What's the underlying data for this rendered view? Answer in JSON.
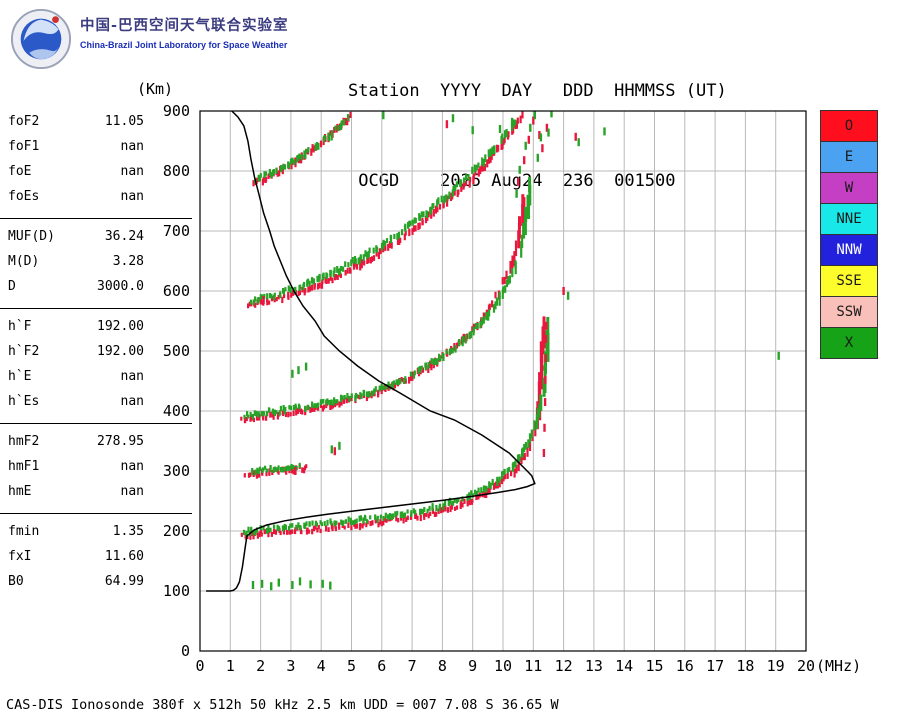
{
  "header": {
    "lab_title_cn": "中国-巴西空间天气联合实验室",
    "lab_title_en": "China-Brazil Joint Laboratory for Space Weather",
    "station_line1": "Station  YYYY  DAY   DDD  HHMMSS (UT)",
    "station_line2": " OCGD    2025 Aug24  236  001500"
  },
  "params": {
    "groups": [
      {
        "rows": [
          {
            "label": "foF2",
            "value": "11.05"
          },
          {
            "label": "foF1",
            "value": "nan"
          },
          {
            "label": "foE",
            "value": "nan"
          },
          {
            "label": "foEs",
            "value": "nan"
          }
        ]
      },
      {
        "rows": [
          {
            "label": "MUF(D)",
            "value": "36.24"
          },
          {
            "label": "M(D)",
            "value": "3.28"
          },
          {
            "label": "D",
            "value": "3000.0"
          }
        ]
      },
      {
        "rows": [
          {
            "label": "h`F",
            "value": "192.00"
          },
          {
            "label": "h`F2",
            "value": "192.00"
          },
          {
            "label": "h`E",
            "value": "nan"
          },
          {
            "label": "h`Es",
            "value": "nan"
          }
        ]
      },
      {
        "rows": [
          {
            "label": "hmF2",
            "value": "278.95"
          },
          {
            "label": "hmF1",
            "value": "nan"
          },
          {
            "label": "hmE",
            "value": "nan"
          }
        ]
      },
      {
        "rows": [
          {
            "label": "fmin",
            "value": "1.35"
          },
          {
            "label": "fxI",
            "value": "11.60"
          },
          {
            "label": "B0",
            "value": "64.99"
          }
        ]
      }
    ]
  },
  "chart_data": {
    "type": "scatter",
    "title": "Ionogram OCGD 2025 Aug24 236 001500 UT",
    "xlabel": "(MHz)",
    "ylabel": "(Km)",
    "xlim": [
      0,
      20
    ],
    "ylim": [
      0,
      900
    ],
    "x_ticks": [
      0,
      1,
      2,
      3,
      4,
      5,
      6,
      7,
      8,
      9,
      10,
      11,
      12,
      13,
      14,
      15,
      16,
      17,
      18,
      19,
      20
    ],
    "y_ticks": [
      0,
      100,
      200,
      300,
      400,
      500,
      600,
      700,
      800,
      900
    ],
    "grid": true,
    "legend": [
      {
        "label": "O",
        "color": "#ff0f1e",
        "text_color": "#1a1a1a"
      },
      {
        "label": "E",
        "color": "#4aa2f0",
        "text_color": "#1a1a1a"
      },
      {
        "label": "W",
        "color": "#c43fc4",
        "text_color": "#1a1a1a"
      },
      {
        "label": "NNE",
        "color": "#18e8e8",
        "text_color": "#1a1a1a"
      },
      {
        "label": "NNW",
        "color": "#2222dd",
        "text_color": "#ffffff"
      },
      {
        "label": "SSE",
        "color": "#fdfd2c",
        "text_color": "#1a1a1a"
      },
      {
        "label": "SSW",
        "color": "#f8c0b8",
        "text_color": "#1a1a1a"
      },
      {
        "label": "X",
        "color": "#17a317",
        "text_color": "#1a1a1a"
      }
    ],
    "series": [
      {
        "name": "o-mode-1st-hop",
        "type": "echo",
        "color": "#e8173d",
        "anchors": [
          [
            1.35,
            190
          ],
          [
            1.6,
            193
          ],
          [
            2.0,
            196
          ],
          [
            2.5,
            198
          ],
          [
            3.0,
            200
          ],
          [
            3.5,
            202
          ],
          [
            4.0,
            204
          ],
          [
            4.5,
            206
          ],
          [
            5.0,
            209
          ],
          [
            5.5,
            212
          ],
          [
            6.0,
            215
          ],
          [
            6.5,
            219
          ],
          [
            7.0,
            223
          ],
          [
            7.5,
            228
          ],
          [
            8.0,
            234
          ],
          [
            8.4,
            240
          ],
          [
            8.8,
            248
          ],
          [
            9.2,
            257
          ],
          [
            9.5,
            266
          ],
          [
            9.8,
            276
          ],
          [
            10.1,
            288
          ],
          [
            10.35,
            300
          ],
          [
            10.55,
            313
          ],
          [
            10.75,
            328
          ],
          [
            10.9,
            345
          ],
          [
            11.0,
            363
          ],
          [
            11.1,
            385
          ],
          [
            11.18,
            412
          ],
          [
            11.24,
            445
          ],
          [
            11.29,
            485
          ],
          [
            11.33,
            545
          ]
        ]
      },
      {
        "name": "x-mode-1st-hop",
        "type": "echo",
        "color": "#27a327",
        "anchors": [
          [
            1.45,
            198
          ],
          [
            2.0,
            203
          ],
          [
            3.0,
            208
          ],
          [
            4.0,
            212
          ],
          [
            5.0,
            217
          ],
          [
            6.0,
            223
          ],
          [
            7.0,
            231
          ],
          [
            8.0,
            243
          ],
          [
            8.8,
            257
          ],
          [
            9.4,
            272
          ],
          [
            9.9,
            289
          ],
          [
            10.3,
            308
          ],
          [
            10.65,
            330
          ],
          [
            10.9,
            355
          ],
          [
            11.1,
            382
          ],
          [
            11.25,
            415
          ],
          [
            11.38,
            455
          ],
          [
            11.47,
            505
          ],
          [
            11.52,
            550
          ]
        ]
      },
      {
        "name": "o-mode-2nd-hop",
        "type": "echo",
        "color": "#e8173d",
        "anchors": [
          [
            1.4,
            385
          ],
          [
            1.8,
            389
          ],
          [
            2.3,
            393
          ],
          [
            2.9,
            397
          ],
          [
            3.5,
            402
          ],
          [
            4.1,
            408
          ],
          [
            4.7,
            415
          ],
          [
            5.3,
            423
          ],
          [
            5.9,
            433
          ],
          [
            6.5,
            445
          ],
          [
            7.0,
            458
          ],
          [
            7.5,
            473
          ],
          [
            8.0,
            490
          ],
          [
            8.5,
            510
          ],
          [
            8.9,
            530
          ],
          [
            9.3,
            552
          ],
          [
            9.6,
            575
          ],
          [
            9.9,
            600
          ],
          [
            10.15,
            628
          ],
          [
            10.35,
            658
          ],
          [
            10.5,
            690
          ],
          [
            10.62,
            725
          ],
          [
            10.72,
            760
          ]
        ]
      },
      {
        "name": "x-mode-2nd-hop",
        "type": "echo",
        "color": "#27a327",
        "anchors": [
          [
            1.5,
            393
          ],
          [
            2.5,
            400
          ],
          [
            3.5,
            408
          ],
          [
            4.5,
            418
          ],
          [
            5.5,
            430
          ],
          [
            6.5,
            447
          ],
          [
            7.3,
            468
          ],
          [
            8.0,
            492
          ],
          [
            8.7,
            518
          ],
          [
            9.3,
            548
          ],
          [
            9.8,
            580
          ],
          [
            10.2,
            615
          ],
          [
            10.5,
            655
          ],
          [
            10.7,
            700
          ],
          [
            10.85,
            750
          ],
          [
            10.95,
            790
          ]
        ]
      },
      {
        "name": "o-mode-3rd-hop",
        "type": "echo",
        "color": "#e8173d",
        "anchors": [
          [
            1.6,
            575
          ],
          [
            2.0,
            580
          ],
          [
            2.5,
            586
          ],
          [
            3.0,
            594
          ],
          [
            3.5,
            603
          ],
          [
            4.0,
            613
          ],
          [
            4.5,
            624
          ],
          [
            5.0,
            637
          ],
          [
            5.5,
            651
          ],
          [
            6.0,
            667
          ],
          [
            6.5,
            684
          ],
          [
            7.0,
            702
          ],
          [
            7.5,
            722
          ],
          [
            8.0,
            743
          ],
          [
            8.5,
            765
          ],
          [
            9.0,
            788
          ],
          [
            9.4,
            810
          ],
          [
            9.8,
            834
          ],
          [
            10.15,
            858
          ],
          [
            10.45,
            880
          ],
          [
            10.7,
            896
          ]
        ]
      },
      {
        "name": "x-mode-3rd-hop",
        "type": "echo",
        "color": "#27a327",
        "anchors": [
          [
            1.7,
            583
          ],
          [
            2.5,
            594
          ],
          [
            3.5,
            612
          ],
          [
            4.5,
            634
          ],
          [
            5.5,
            661
          ],
          [
            6.5,
            694
          ],
          [
            7.5,
            732
          ],
          [
            8.5,
            775
          ],
          [
            9.4,
            820
          ],
          [
            10.1,
            862
          ],
          [
            10.55,
            890
          ]
        ]
      },
      {
        "name": "o-mode-4th-hop",
        "type": "echo",
        "color": "#e8173d",
        "anchors": [
          [
            1.75,
            778
          ],
          [
            2.1,
            786
          ],
          [
            2.5,
            796
          ],
          [
            2.9,
            808
          ],
          [
            3.3,
            821
          ],
          [
            3.7,
            836
          ],
          [
            4.1,
            852
          ],
          [
            4.5,
            869
          ],
          [
            4.85,
            886
          ],
          [
            5.05,
            896
          ]
        ]
      },
      {
        "name": "x-mode-4th-hop",
        "type": "echo",
        "color": "#27a327",
        "anchors": [
          [
            1.85,
            786
          ],
          [
            2.4,
            798
          ],
          [
            3.0,
            814
          ],
          [
            3.6,
            833
          ],
          [
            4.2,
            855
          ],
          [
            4.7,
            877
          ],
          [
            5.0,
            892
          ]
        ]
      },
      {
        "name": "o-mode-stray-300km",
        "type": "echo",
        "color": "#e8173d",
        "anchors": [
          [
            1.5,
            294
          ],
          [
            2.2,
            298
          ],
          [
            3.0,
            302
          ],
          [
            3.6,
            306
          ]
        ]
      },
      {
        "name": "x-mode-stray-300km",
        "type": "echo",
        "color": "#27a327",
        "anchors": [
          [
            1.7,
            299
          ],
          [
            2.6,
            305
          ],
          [
            3.4,
            310
          ]
        ]
      },
      {
        "name": "o-mode-scatter",
        "type": "points",
        "color": "#e8173d",
        "points": [
          [
            4.45,
            333
          ],
          [
            8.15,
            878
          ],
          [
            10.5,
            782
          ],
          [
            10.7,
            818
          ],
          [
            10.85,
            852
          ],
          [
            11.0,
            884
          ],
          [
            11.2,
            860
          ],
          [
            11.3,
            838
          ],
          [
            11.45,
            872
          ],
          [
            12.0,
            600
          ],
          [
            12.4,
            857
          ],
          [
            11.35,
            330
          ],
          [
            11.37,
            372
          ],
          [
            11.39,
            415
          ],
          [
            11.4,
            452
          ],
          [
            11.41,
            488
          ],
          [
            11.42,
            520
          ],
          [
            11.43,
            542
          ],
          [
            3.15,
            300
          ],
          [
            2.1,
            585
          ]
        ]
      },
      {
        "name": "x-mode-scatter",
        "type": "points",
        "color": "#27a327",
        "points": [
          [
            1.75,
            110
          ],
          [
            2.05,
            112
          ],
          [
            2.35,
            108
          ],
          [
            2.6,
            114
          ],
          [
            3.05,
            110
          ],
          [
            3.3,
            116
          ],
          [
            3.65,
            111
          ],
          [
            4.05,
            112
          ],
          [
            4.3,
            109
          ],
          [
            3.05,
            462
          ],
          [
            3.25,
            468
          ],
          [
            3.5,
            474
          ],
          [
            4.35,
            336
          ],
          [
            4.6,
            342
          ],
          [
            6.05,
            893
          ],
          [
            9.0,
            868
          ],
          [
            8.35,
            888
          ],
          [
            9.9,
            870
          ],
          [
            10.3,
            882
          ],
          [
            10.45,
            762
          ],
          [
            10.55,
            802
          ],
          [
            10.75,
            842
          ],
          [
            10.9,
            872
          ],
          [
            11.05,
            893
          ],
          [
            11.15,
            822
          ],
          [
            11.25,
            856
          ],
          [
            11.5,
            864
          ],
          [
            11.6,
            896
          ],
          [
            12.15,
            592
          ],
          [
            12.5,
            848
          ],
          [
            13.35,
            866
          ],
          [
            19.1,
            492
          ]
        ]
      },
      {
        "name": "true-height-profile",
        "type": "line",
        "color": "#000000",
        "points": [
          [
            0.2,
            100
          ],
          [
            1.0,
            100
          ],
          [
            1.1,
            101
          ],
          [
            1.2,
            105
          ],
          [
            1.3,
            115
          ],
          [
            1.4,
            140
          ],
          [
            1.5,
            175
          ],
          [
            1.55,
            192
          ],
          [
            1.8,
            202
          ],
          [
            2.2,
            210
          ],
          [
            2.8,
            217
          ],
          [
            3.5,
            223
          ],
          [
            4.2,
            228
          ],
          [
            5.0,
            233
          ],
          [
            6.0,
            239
          ],
          [
            7.0,
            245
          ],
          [
            8.0,
            251
          ],
          [
            9.0,
            258
          ],
          [
            9.8,
            264
          ],
          [
            10.4,
            269
          ],
          [
            10.8,
            274
          ],
          [
            11.05,
            279
          ],
          [
            10.95,
            292
          ],
          [
            10.8,
            300
          ],
          [
            10.2,
            330
          ],
          [
            9.3,
            360
          ],
          [
            8.4,
            385
          ],
          [
            7.6,
            400
          ],
          [
            6.6,
            430
          ],
          [
            5.9,
            450
          ],
          [
            5.2,
            475
          ],
          [
            4.6,
            500
          ],
          [
            4.1,
            525
          ],
          [
            3.8,
            550
          ],
          [
            3.4,
            575
          ],
          [
            3.1,
            600
          ],
          [
            2.85,
            625
          ],
          [
            2.65,
            650
          ],
          [
            2.45,
            675
          ],
          [
            2.3,
            700
          ],
          [
            2.1,
            730
          ],
          [
            1.95,
            760
          ],
          [
            1.8,
            790
          ],
          [
            1.68,
            820
          ],
          [
            1.58,
            850
          ],
          [
            1.45,
            875
          ],
          [
            1.25,
            890
          ],
          [
            1.05,
            900
          ]
        ]
      }
    ]
  },
  "footer": {
    "status_line": "CAS-DIS Ionosonde 380f x 512h 50 kHz 2.5 km UDD = 007 7.08 S 36.65 W"
  }
}
